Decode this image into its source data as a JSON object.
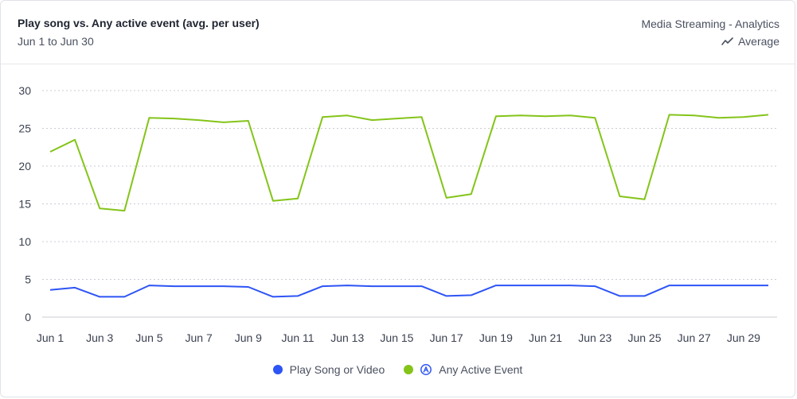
{
  "header": {
    "title": "Play song vs. Any active event (avg. per user)",
    "date_range": "Jun 1 to Jun 30",
    "source": "Media Streaming - Analytics",
    "metric_label": "Average"
  },
  "colors": {
    "play": "#2d54f5",
    "active": "#84c419",
    "grid": "#c9ccd3"
  },
  "legend": {
    "play_label": "Play Song or Video",
    "active_label": "Any Active Event"
  },
  "chart_data": {
    "type": "line",
    "title": "Play song vs. Any active event (avg. per user)",
    "xlabel": "",
    "ylabel": "",
    "ylim": [
      0,
      30
    ],
    "yticks": [
      0,
      5,
      10,
      15,
      20,
      25,
      30
    ],
    "grid": true,
    "legend_position": "bottom",
    "x": [
      "Jun 1",
      "Jun 2",
      "Jun 3",
      "Jun 4",
      "Jun 5",
      "Jun 6",
      "Jun 7",
      "Jun 8",
      "Jun 9",
      "Jun 10",
      "Jun 11",
      "Jun 12",
      "Jun 13",
      "Jun 14",
      "Jun 15",
      "Jun 16",
      "Jun 17",
      "Jun 18",
      "Jun 19",
      "Jun 20",
      "Jun 21",
      "Jun 22",
      "Jun 23",
      "Jun 24",
      "Jun 25",
      "Jun 26",
      "Jun 27",
      "Jun 28",
      "Jun 29",
      "Jun 30"
    ],
    "xtick_labels": [
      "Jun 1",
      "Jun 3",
      "Jun 5",
      "Jun 7",
      "Jun 9",
      "Jun 11",
      "Jun 13",
      "Jun 15",
      "Jun 17",
      "Jun 19",
      "Jun 21",
      "Jun 23",
      "Jun 25",
      "Jun 27",
      "Jun 29"
    ],
    "series": [
      {
        "name": "Play Song or Video",
        "color": "#2d54f5",
        "values": [
          3.6,
          3.9,
          2.7,
          2.7,
          4.2,
          4.1,
          4.1,
          4.1,
          4.0,
          2.7,
          2.8,
          4.1,
          4.2,
          4.1,
          4.1,
          4.1,
          2.8,
          2.9,
          4.2,
          4.2,
          4.2,
          4.2,
          4.1,
          2.8,
          2.8,
          4.2,
          4.2,
          4.2,
          4.2,
          4.2
        ]
      },
      {
        "name": "Any Active Event",
        "color": "#84c419",
        "values": [
          21.9,
          23.5,
          14.4,
          14.1,
          26.4,
          26.3,
          26.1,
          25.8,
          26.0,
          15.4,
          15.7,
          26.5,
          26.7,
          26.1,
          26.3,
          26.5,
          15.8,
          16.3,
          26.6,
          26.7,
          26.6,
          26.7,
          26.4,
          16.0,
          15.6,
          26.8,
          26.7,
          26.4,
          26.5,
          26.8
        ]
      }
    ]
  }
}
